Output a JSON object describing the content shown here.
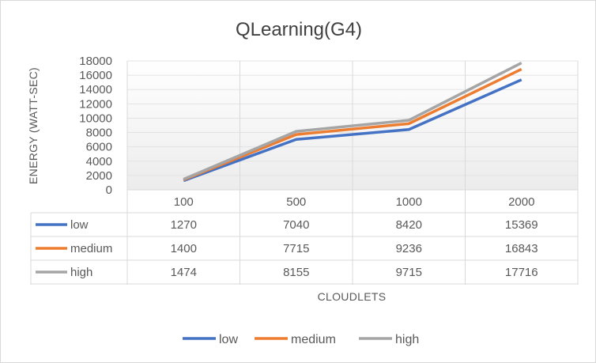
{
  "chart_data": {
    "type": "line",
    "title": "QLearning(G4)",
    "xlabel": "CLOUDLETS",
    "ylabel": "ENERGY (WATT-SEC)",
    "categories": [
      "100",
      "500",
      "1000",
      "2000"
    ],
    "ylim": [
      0,
      18000
    ],
    "yticks": [
      0,
      2000,
      4000,
      6000,
      8000,
      10000,
      12000,
      14000,
      16000,
      18000
    ],
    "grid": true,
    "legend": "bottom",
    "data_table": true,
    "series": [
      {
        "name": "low",
        "color": "#4472c4",
        "values": [
          1270,
          7040,
          8420,
          15369
        ]
      },
      {
        "name": "medium",
        "color": "#ed7d31",
        "values": [
          1400,
          7715,
          9236,
          16843
        ]
      },
      {
        "name": "high",
        "color": "#a5a5a5",
        "values": [
          1474,
          8155,
          9715,
          17716
        ]
      }
    ]
  }
}
